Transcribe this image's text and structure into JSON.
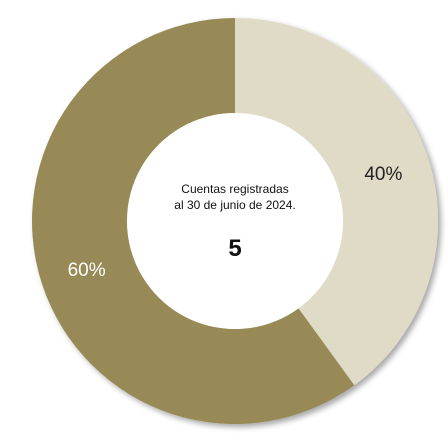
{
  "chart_data": {
    "type": "pie",
    "style": "donut",
    "slices": [
      {
        "label": "40%",
        "value": 40,
        "color": "#e0dbc6",
        "label_color": "#222222"
      },
      {
        "label": "60%",
        "value": 60,
        "color": "#978a57",
        "label_color": "#ffffff"
      }
    ],
    "center": {
      "caption_line1": "Cuentas registradas",
      "caption_line2": "al 30 de junio de 2024.",
      "value": "5"
    }
  }
}
